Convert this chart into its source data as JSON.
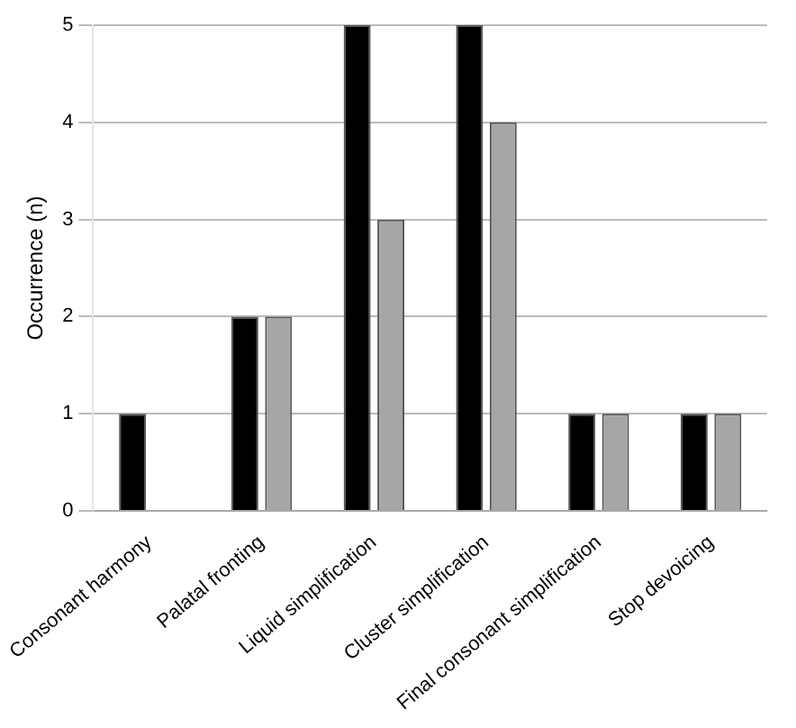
{
  "chart_data": {
    "type": "bar",
    "ylabel": "Occurrence (n)",
    "categories": [
      "Consonant harmony",
      "Palatal fronting",
      "Liquid simplification",
      "Cluster simplification",
      "Final consonant simplification",
      "Stop devoicing"
    ],
    "series": [
      {
        "color": "#000000",
        "values": [
          1,
          2,
          5,
          5,
          1,
          1
        ]
      },
      {
        "color": "#a6a6a6",
        "values": [
          0,
          2,
          3,
          4,
          1,
          1
        ]
      }
    ],
    "ylim": [
      0,
      5
    ],
    "yticks": [
      0,
      1,
      2,
      3,
      4,
      5
    ],
    "grid": "y",
    "legend": false
  }
}
